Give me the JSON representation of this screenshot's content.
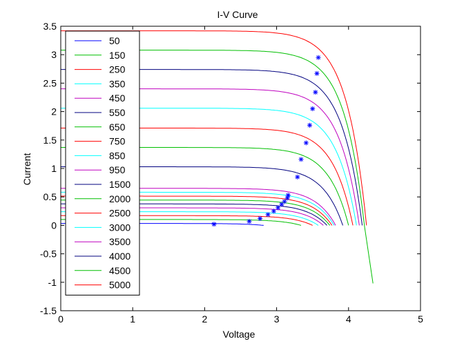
{
  "chart_data": {
    "type": "line",
    "title": "I-V Curve",
    "xlabel": "Voltage",
    "ylabel": "Current",
    "xlim": [
      0,
      5
    ],
    "ylim": [
      -1.5,
      3.5
    ],
    "xticks": [
      "0",
      "1",
      "2",
      "3",
      "4",
      "5"
    ],
    "yticks": [
      "-1.5",
      "-1",
      "-0.5",
      "0",
      "0.5",
      "1",
      "1.5",
      "2",
      "2.5",
      "3",
      "3.5"
    ],
    "grid": false,
    "legend_position": "top-left",
    "colors": [
      "#0000ff",
      "#00bf00",
      "#ff0000",
      "#00ffff",
      "#bf00bf",
      "#00007f",
      "#00bf00",
      "#ff0000",
      "#00ffff",
      "#bf00bf",
      "#00007f",
      "#00bf00",
      "#ff0000",
      "#00ffff",
      "#bf00bf",
      "#00007f",
      "#00bf00",
      "#ff0000"
    ],
    "mpp_marker_color": "#0000ff",
    "series": [
      {
        "name": "50",
        "isc": 0.034,
        "voc": 2.82,
        "vmp": 2.13,
        "imp": 0.02
      },
      {
        "name": "150",
        "isc": 0.103,
        "voc": 3.34,
        "vmp": 2.62,
        "imp": 0.07
      },
      {
        "name": "250",
        "isc": 0.171,
        "voc": 3.5,
        "vmp": 2.77,
        "imp": 0.12
      },
      {
        "name": "350",
        "isc": 0.24,
        "voc": 3.58,
        "vmp": 2.88,
        "imp": 0.19
      },
      {
        "name": "450",
        "isc": 0.308,
        "voc": 3.65,
        "vmp": 2.96,
        "imp": 0.25
      },
      {
        "name": "550",
        "isc": 0.377,
        "voc": 3.7,
        "vmp": 3.02,
        "imp": 0.31
      },
      {
        "name": "650",
        "isc": 0.445,
        "voc": 3.74,
        "vmp": 3.07,
        "imp": 0.37
      },
      {
        "name": "750",
        "isc": 0.514,
        "voc": 3.77,
        "vmp": 3.11,
        "imp": 0.42
      },
      {
        "name": "850",
        "isc": 0.582,
        "voc": 3.8,
        "vmp": 3.15,
        "imp": 0.48
      },
      {
        "name": "950",
        "isc": 0.651,
        "voc": 3.82,
        "vmp": 3.16,
        "imp": 0.53
      },
      {
        "name": "1500",
        "isc": 1.03,
        "voc": 3.92,
        "vmp": 3.29,
        "imp": 0.85
      },
      {
        "name": "2000",
        "isc": 1.37,
        "voc": 4.0,
        "vmp": 3.34,
        "imp": 1.16
      },
      {
        "name": "2500",
        "isc": 1.71,
        "voc": 4.06,
        "vmp": 3.41,
        "imp": 1.45
      },
      {
        "name": "3000",
        "isc": 2.06,
        "voc": 4.11,
        "vmp": 3.46,
        "imp": 1.76
      },
      {
        "name": "3500",
        "isc": 2.4,
        "voc": 4.15,
        "vmp": 3.5,
        "imp": 2.05
      },
      {
        "name": "4000",
        "isc": 2.74,
        "voc": 4.19,
        "vmp": 3.54,
        "imp": 2.34
      },
      {
        "name": "4500",
        "isc": 3.08,
        "voc": 4.22,
        "vmp": 3.56,
        "imp": 2.67,
        "v_end": 4.34,
        "i_end": -1.02
      },
      {
        "name": "5000",
        "isc": 3.42,
        "voc": 4.25,
        "vmp": 3.58,
        "imp": 2.95
      }
    ]
  }
}
